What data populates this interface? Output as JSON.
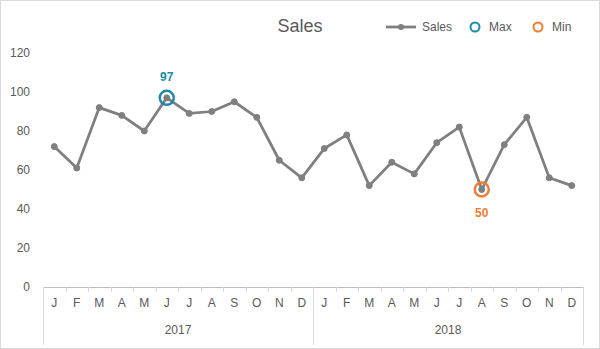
{
  "chart_data": {
    "type": "line",
    "title": "Sales",
    "categories": [
      "J",
      "F",
      "M",
      "A",
      "M",
      "J",
      "J",
      "A",
      "S",
      "O",
      "N",
      "D",
      "J",
      "F",
      "M",
      "A",
      "M",
      "J",
      "J",
      "A",
      "S",
      "O",
      "N",
      "D"
    ],
    "category_groups": [
      {
        "label": "2017",
        "size": 12
      },
      {
        "label": "2018",
        "size": 12
      }
    ],
    "series": [
      {
        "name": "Sales",
        "color": "#7f7f7f",
        "marker": "circle",
        "line_style": "solid",
        "values": [
          72,
          61,
          92,
          88,
          80,
          97,
          89,
          90,
          95,
          87,
          65,
          56,
          71,
          78,
          52,
          64,
          58,
          74,
          82,
          50,
          73,
          87,
          56,
          52
        ]
      },
      {
        "name": "Max",
        "color": "#1f8aa8",
        "marker": "ring",
        "line_style": "none",
        "data_labels": true,
        "values": [
          null,
          null,
          null,
          null,
          null,
          97,
          null,
          null,
          null,
          null,
          null,
          null,
          null,
          null,
          null,
          null,
          null,
          null,
          null,
          null,
          null,
          null,
          null,
          null
        ]
      },
      {
        "name": "Min",
        "color": "#ed7d31",
        "marker": "ring",
        "line_style": "none",
        "data_labels": true,
        "values": [
          null,
          null,
          null,
          null,
          null,
          null,
          null,
          null,
          null,
          null,
          null,
          null,
          null,
          null,
          null,
          null,
          null,
          null,
          null,
          50,
          null,
          null,
          null,
          null
        ]
      }
    ],
    "ylim": [
      0,
      120
    ],
    "yticks": [
      0,
      20,
      40,
      60,
      80,
      100,
      120
    ],
    "grid": false,
    "legend": "top-right"
  }
}
